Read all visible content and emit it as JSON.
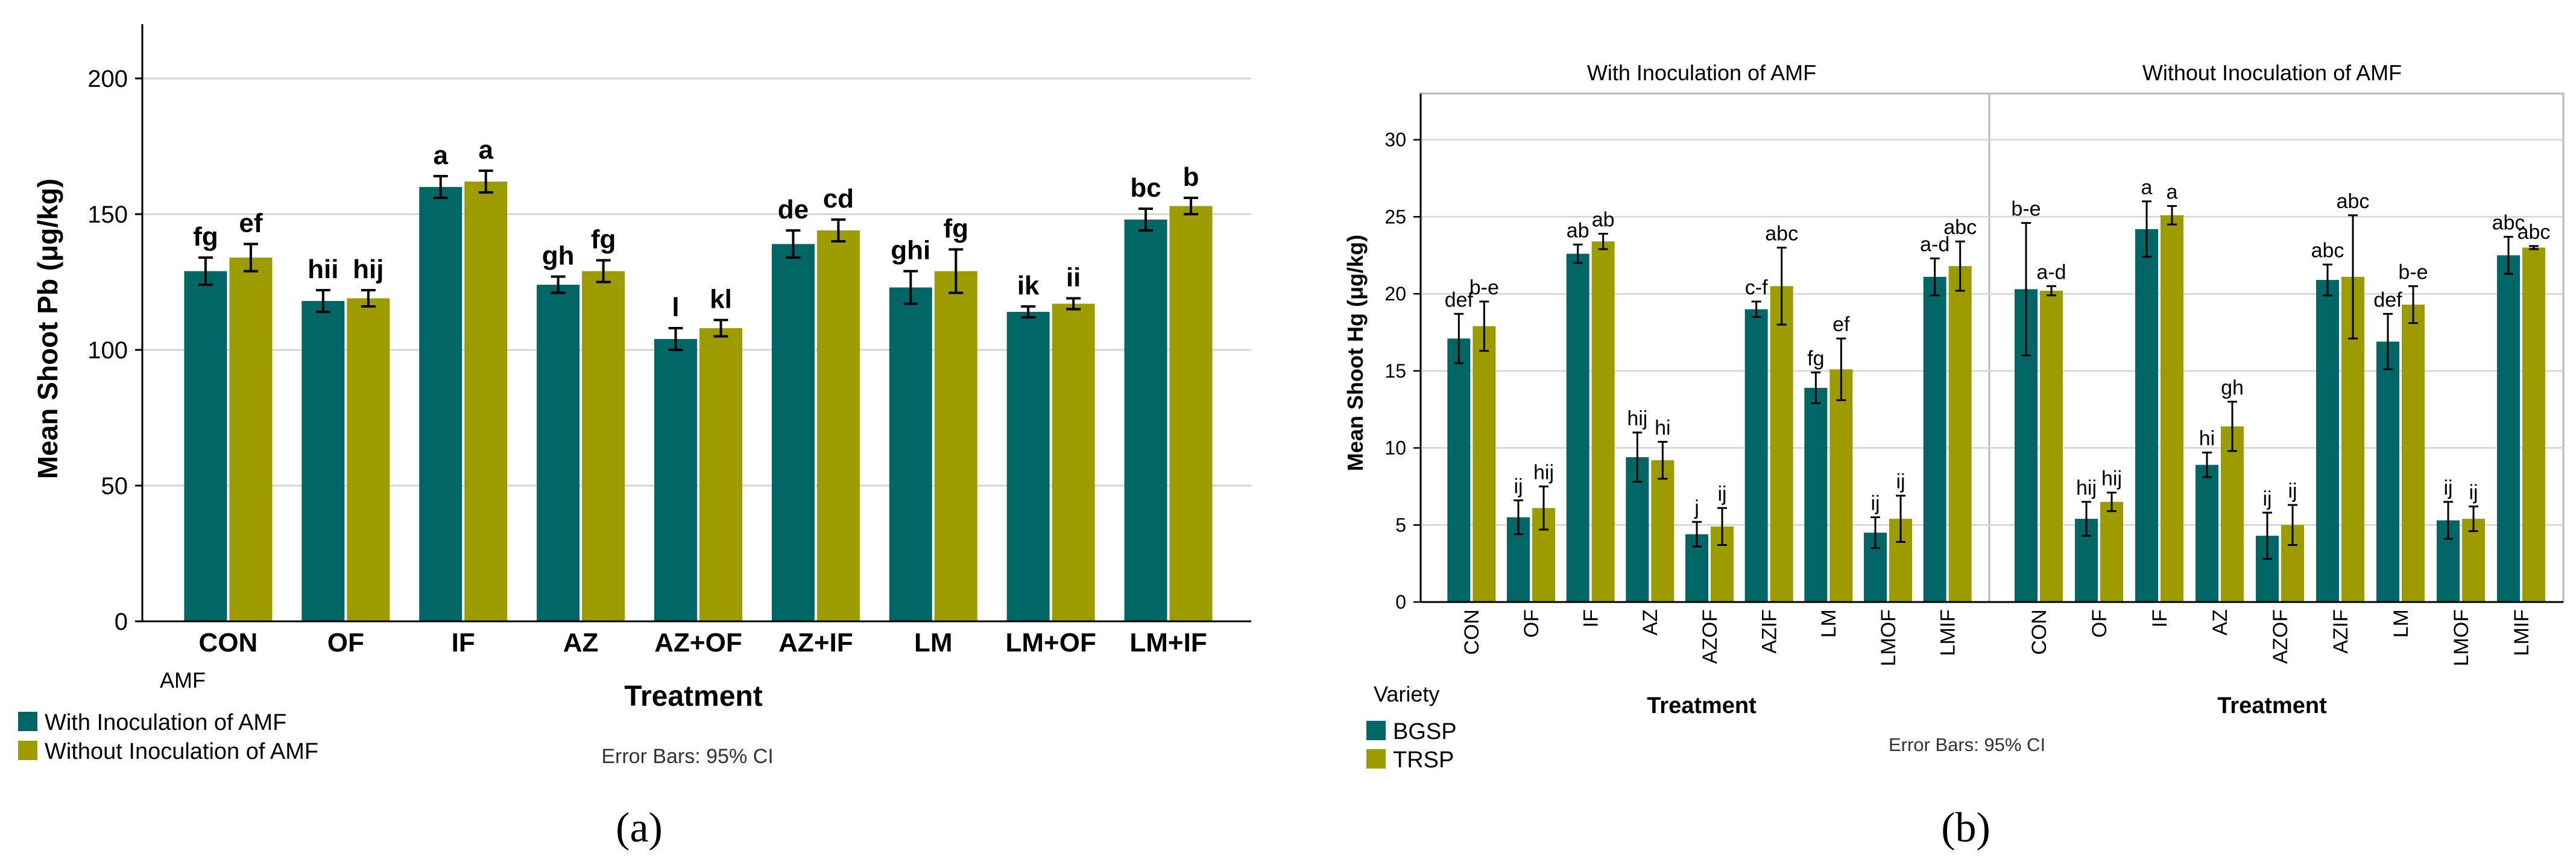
{
  "colors": {
    "teal": "#006666",
    "olive": "#9c9c00",
    "axis": "#000000",
    "grid": "#d4d4d4",
    "panel_border": "#b8b8b8"
  },
  "panel_a": {
    "caption": "(a)",
    "ylabel": "Mean Shoot Pb (μg/kg)",
    "xlabel": "Treatment",
    "legend_title": "AMF",
    "legend_items": [
      "With Inoculation of AMF",
      "Without Inoculation of AMF"
    ],
    "note": "Error Bars: 95% CI"
  },
  "panel_b": {
    "caption": "(b)",
    "ylabel": "Mean Shoot Hg (μg/kg)",
    "xlabel": "Treatment",
    "facets": [
      "With Inoculation of AMF",
      "Without Inoculation of AMF"
    ],
    "legend_title": "Variety",
    "legend_items": [
      "BGSP",
      "TRSP"
    ],
    "note": "Error Bars: 95% CI"
  },
  "chart_data": [
    {
      "type": "bar",
      "ylabel": "Mean Shoot Pb (μg/kg)",
      "xlabel": "Treatment",
      "ylim": [
        0,
        220
      ],
      "yticks": [
        0,
        50,
        100,
        150,
        200
      ],
      "grid": true,
      "legend_title": "AMF",
      "legend_placement": "bottom-left",
      "categories": [
        "CON",
        "OF",
        "IF",
        "AZ",
        "AZ+OF",
        "AZ+IF",
        "LM",
        "LM+OF",
        "LM+IF"
      ],
      "series": [
        {
          "name": "With Inoculation of AMF",
          "values": [
            129,
            118,
            160,
            124,
            104,
            139,
            123,
            114,
            148
          ],
          "err": [
            5,
            4,
            4,
            3,
            4,
            5,
            6,
            2,
            4
          ],
          "letters": [
            "fg",
            "hii",
            "a",
            "gh",
            "l",
            "de",
            "ghi",
            "ik",
            "bc"
          ]
        },
        {
          "name": "Without Inoculation of AMF",
          "values": [
            134,
            119,
            162,
            129,
            108,
            144,
            129,
            117,
            153
          ],
          "err": [
            5,
            3,
            4,
            4,
            3,
            4,
            8,
            2,
            3
          ],
          "letters": [
            "ef",
            "hij",
            "a",
            "fg",
            "kl",
            "cd",
            "fg",
            "ii",
            "b"
          ]
        }
      ]
    },
    {
      "type": "bar",
      "ylabel": "Mean Shoot Hg (μg/kg)",
      "xlabel": "Treatment",
      "ylim": [
        0,
        33
      ],
      "yticks": [
        0,
        5,
        10,
        15,
        20,
        25,
        30
      ],
      "grid": true,
      "legend_title": "Variety",
      "legend_placement": "bottom-left",
      "categories": [
        "CON",
        "OF",
        "IF",
        "AZ",
        "AZOF",
        "AZIF",
        "LM",
        "LMOF",
        "LMIF"
      ],
      "facets": [
        {
          "name": "With Inoculation of AMF",
          "series": [
            {
              "name": "BGSP",
              "values": [
                17.1,
                5.5,
                22.6,
                9.4,
                4.4,
                19.0,
                13.9,
                4.5,
                21.1
              ],
              "err": [
                1.6,
                1.1,
                0.6,
                1.6,
                0.8,
                0.5,
                1.0,
                1.0,
                1.2
              ],
              "letters": [
                "def",
                "ij",
                "ab",
                "hij",
                "j",
                "c-f",
                "fg",
                "ij",
                "a-d"
              ]
            },
            {
              "name": "TRSP",
              "values": [
                17.9,
                6.1,
                23.4,
                9.2,
                4.9,
                20.5,
                15.1,
                5.4,
                21.8
              ],
              "err": [
                1.6,
                1.4,
                0.5,
                1.2,
                1.2,
                2.5,
                2.0,
                1.5,
                1.6
              ],
              "letters": [
                "b-e",
                "hij",
                "ab",
                "hi",
                "ij",
                "abc",
                "ef",
                "ij",
                "abc"
              ]
            }
          ]
        },
        {
          "name": "Without Inoculation of AMF",
          "series": [
            {
              "name": "BGSP",
              "values": [
                20.3,
                5.4,
                24.2,
                8.9,
                4.3,
                20.9,
                16.9,
                5.3,
                22.5
              ],
              "err": [
                4.3,
                1.1,
                1.8,
                0.8,
                1.5,
                1.0,
                1.8,
                1.2,
                1.2
              ],
              "letters": [
                "b-e",
                "hij",
                "a",
                "hi",
                "ij",
                "abc",
                "def",
                "ij",
                "abc"
              ]
            },
            {
              "name": "TRSP",
              "values": [
                20.2,
                6.5,
                25.1,
                11.4,
                5.0,
                21.1,
                19.3,
                5.4,
                23.0
              ],
              "err": [
                0.3,
                0.6,
                0.6,
                1.6,
                1.3,
                4.0,
                1.2,
                0.8,
                0.1
              ],
              "letters": [
                "a-d",
                "hij",
                "a",
                "gh",
                "ij",
                "abc",
                "b-e",
                "ij",
                "abc"
              ]
            }
          ]
        }
      ]
    }
  ]
}
